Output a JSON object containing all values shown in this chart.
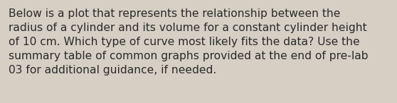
{
  "text": "Below is a plot that represents the relationship between the\nradius of a cylinder and its volume for a constant cylinder height\nof 10 cm. Which type of curve most likely fits the data? Use the\nsummary table of common graphs provided at the end of pre-lab\n03 for additional guidance, if needed.",
  "background_color": "#d6d0c4",
  "text_color": "#2b2b2b",
  "font_size": 11.2,
  "fig_width": 5.58,
  "fig_height": 1.46
}
